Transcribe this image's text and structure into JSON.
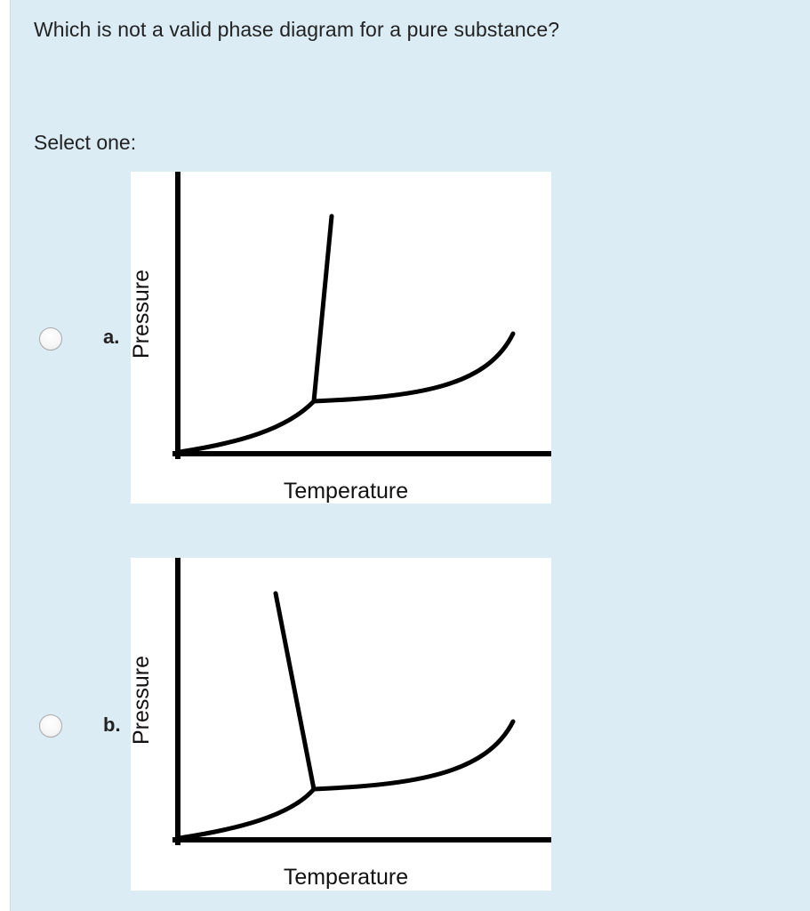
{
  "question": {
    "text": "Which is not a valid phase diagram for a pure substance?",
    "prompt": "Select one:"
  },
  "options": [
    {
      "letter": "a.",
      "selected": false,
      "diagram": {
        "ylabel": "Pressure",
        "xlabel": "Temperature"
      }
    },
    {
      "letter": "b.",
      "selected": false,
      "diagram": {
        "ylabel": "Pressure",
        "xlabel": "Temperature"
      }
    }
  ]
}
